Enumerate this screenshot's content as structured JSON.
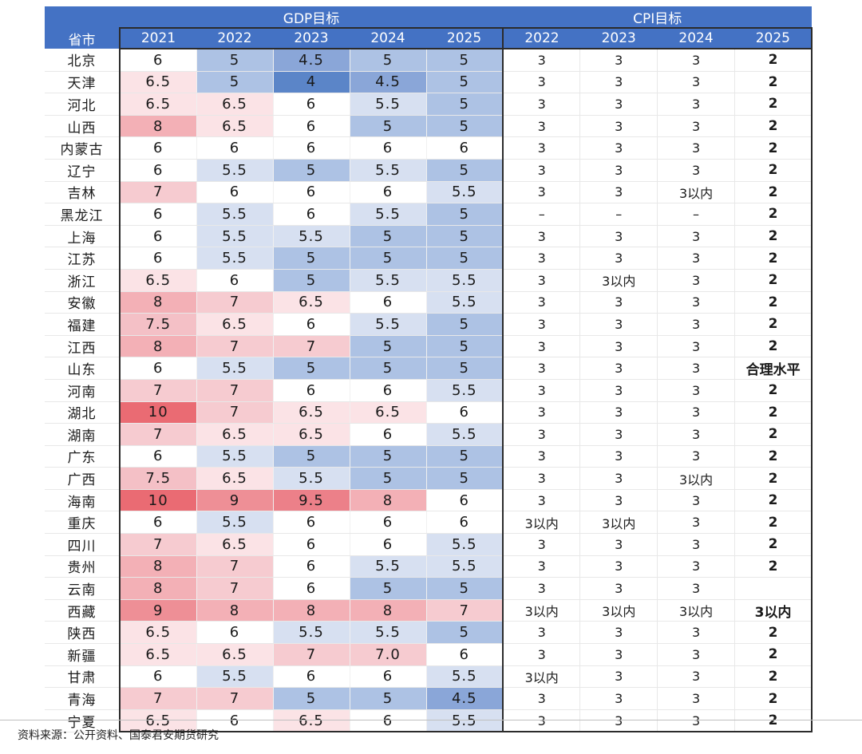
{
  "header": {
    "province_label": "省市",
    "gdp_group": "GDP目标",
    "cpi_group": "CPI目标",
    "gdp_years": [
      "2021",
      "2022",
      "2023",
      "2024",
      "2025"
    ],
    "cpi_years": [
      "2022",
      "2023",
      "2024",
      "2025"
    ]
  },
  "rows": [
    {
      "name": "北京",
      "gdp": [
        "6",
        "5",
        "4.5",
        "5",
        "5"
      ],
      "cpi": [
        "3",
        "3",
        "3",
        "2"
      ]
    },
    {
      "name": "天津",
      "gdp": [
        "6.5",
        "5",
        "4",
        "4.5",
        "5"
      ],
      "cpi": [
        "3",
        "3",
        "3",
        "2"
      ]
    },
    {
      "name": "河北",
      "gdp": [
        "6.5",
        "6.5",
        "6",
        "5.5",
        "5"
      ],
      "cpi": [
        "3",
        "3",
        "3",
        "2"
      ]
    },
    {
      "name": "山西",
      "gdp": [
        "8",
        "6.5",
        "6",
        "5",
        "5"
      ],
      "cpi": [
        "3",
        "3",
        "3",
        "2"
      ]
    },
    {
      "name": "内蒙古",
      "gdp": [
        "6",
        "6",
        "6",
        "6",
        "6"
      ],
      "cpi": [
        "3",
        "3",
        "3",
        "2"
      ]
    },
    {
      "name": "辽宁",
      "gdp": [
        "6",
        "5.5",
        "5",
        "5.5",
        "5"
      ],
      "cpi": [
        "3",
        "3",
        "3",
        "2"
      ]
    },
    {
      "name": "吉林",
      "gdp": [
        "7",
        "6",
        "6",
        "6",
        "5.5"
      ],
      "cpi": [
        "3",
        "3",
        "3以内",
        "2"
      ]
    },
    {
      "name": "黑龙江",
      "gdp": [
        "6",
        "5.5",
        "6",
        "5.5",
        "5"
      ],
      "cpi": [
        "–",
        "–",
        "–",
        "2"
      ]
    },
    {
      "name": "上海",
      "gdp": [
        "6",
        "5.5",
        "5.5",
        "5",
        "5"
      ],
      "cpi": [
        "3",
        "3",
        "3",
        "2"
      ]
    },
    {
      "name": "江苏",
      "gdp": [
        "6",
        "5.5",
        "5",
        "5",
        "5"
      ],
      "cpi": [
        "3",
        "3",
        "3",
        "2"
      ]
    },
    {
      "name": "浙江",
      "gdp": [
        "6.5",
        "6",
        "5",
        "5.5",
        "5.5"
      ],
      "cpi": [
        "3",
        "3以内",
        "3",
        "2"
      ]
    },
    {
      "name": "安徽",
      "gdp": [
        "8",
        "7",
        "6.5",
        "6",
        "5.5"
      ],
      "cpi": [
        "3",
        "3",
        "3",
        "2"
      ]
    },
    {
      "name": "福建",
      "gdp": [
        "7.5",
        "6.5",
        "6",
        "5.5",
        "5"
      ],
      "cpi": [
        "3",
        "3",
        "3",
        "2"
      ]
    },
    {
      "name": "江西",
      "gdp": [
        "8",
        "7",
        "7",
        "5",
        "5"
      ],
      "cpi": [
        "3",
        "3",
        "3",
        "2"
      ]
    },
    {
      "name": "山东",
      "gdp": [
        "6",
        "5.5",
        "5",
        "5",
        "5"
      ],
      "cpi": [
        "3",
        "3",
        "3",
        "合理水平"
      ]
    },
    {
      "name": "河南",
      "gdp": [
        "7",
        "7",
        "6",
        "6",
        "5.5"
      ],
      "cpi": [
        "3",
        "3",
        "3",
        "2"
      ]
    },
    {
      "name": "湖北",
      "gdp": [
        "10",
        "7",
        "6.5",
        "6.5",
        "6"
      ],
      "cpi": [
        "3",
        "3",
        "3",
        "2"
      ]
    },
    {
      "name": "湖南",
      "gdp": [
        "7",
        "6.5",
        "6.5",
        "6",
        "5.5"
      ],
      "cpi": [
        "3",
        "3",
        "3",
        "2"
      ]
    },
    {
      "name": "广东",
      "gdp": [
        "6",
        "5.5",
        "5",
        "5",
        "5"
      ],
      "cpi": [
        "3",
        "3",
        "3",
        "2"
      ]
    },
    {
      "name": "广西",
      "gdp": [
        "7.5",
        "6.5",
        "5.5",
        "5",
        "5"
      ],
      "cpi": [
        "3",
        "3",
        "3以内",
        "2"
      ]
    },
    {
      "name": "海南",
      "gdp": [
        "10",
        "9",
        "9.5",
        "8",
        "6"
      ],
      "cpi": [
        "3",
        "3",
        "3",
        "2"
      ]
    },
    {
      "name": "重庆",
      "gdp": [
        "6",
        "5.5",
        "6",
        "6",
        "6"
      ],
      "cpi": [
        "3以内",
        "3以内",
        "3",
        "2"
      ]
    },
    {
      "name": "四川",
      "gdp": [
        "7",
        "6.5",
        "6",
        "6",
        "5.5"
      ],
      "cpi": [
        "3",
        "3",
        "3",
        "2"
      ]
    },
    {
      "name": "贵州",
      "gdp": [
        "8",
        "7",
        "6",
        "5.5",
        "5.5"
      ],
      "cpi": [
        "3",
        "3",
        "3",
        "2"
      ]
    },
    {
      "name": "云南",
      "gdp": [
        "8",
        "7",
        "6",
        "5",
        "5"
      ],
      "cpi": [
        "3",
        "3",
        "3",
        ""
      ]
    },
    {
      "name": "西藏",
      "gdp": [
        "9",
        "8",
        "8",
        "8",
        "7"
      ],
      "cpi": [
        "3以内",
        "3以内",
        "3以内",
        "3以内"
      ]
    },
    {
      "name": "陕西",
      "gdp": [
        "6.5",
        "6",
        "5.5",
        "5.5",
        "5"
      ],
      "cpi": [
        "3",
        "3",
        "3",
        "2"
      ]
    },
    {
      "name": "新疆",
      "gdp": [
        "6.5",
        "6.5",
        "7",
        "7.0",
        "6"
      ],
      "cpi": [
        "3",
        "3",
        "3",
        "2"
      ]
    },
    {
      "name": "甘肃",
      "gdp": [
        "6",
        "5.5",
        "6",
        "6",
        "5.5"
      ],
      "cpi": [
        "3以内",
        "3",
        "3",
        "2"
      ]
    },
    {
      "name": "青海",
      "gdp": [
        "7",
        "7",
        "5",
        "5",
        "4.5"
      ],
      "cpi": [
        "3",
        "3",
        "3",
        "2"
      ]
    },
    {
      "name": "宁夏",
      "gdp": [
        "6.5",
        "6",
        "6.5",
        "6",
        "5.5"
      ],
      "cpi": [
        "3",
        "3",
        "3",
        "2"
      ]
    }
  ],
  "colors": {
    "header_bg": "#4472c4",
    "low_blue": "#5b85c8",
    "mid_blue": "#adc2e4",
    "light_blue": "#d7e0f1",
    "light_pink": "#fbe3e6",
    "mid_pink": "#f3b3b9",
    "strong_red": "#ea6b73"
  },
  "source": "资料来源：公开资料、国泰君安期货研究"
}
